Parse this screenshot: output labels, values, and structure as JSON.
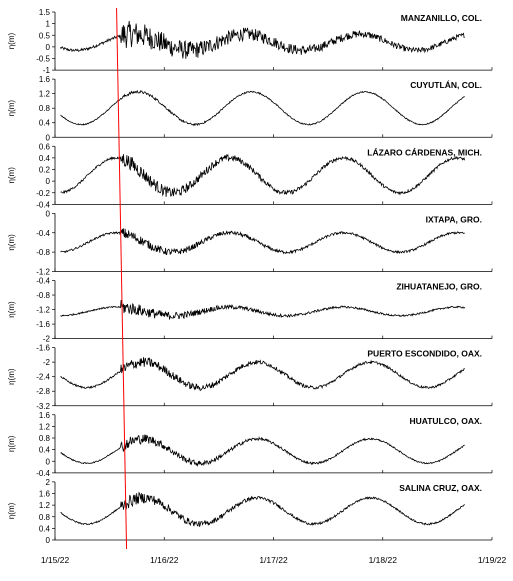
{
  "chart_data": {
    "type": "line",
    "ylabel": "η(m)",
    "x_ticks": [
      "1/15/22",
      "1/16/22",
      "1/17/22",
      "1/18/22",
      "1/19/22"
    ],
    "x_range_days": [
      0,
      4
    ],
    "event_marker_day": 0.6,
    "event_marker_color": "#ff0000",
    "line_color": "#000000",
    "panels": [
      {
        "station": "MANZANILLO, COL.",
        "ylim": [
          -1.0,
          1.5
        ],
        "yticks": [
          "1.5",
          "1",
          "0.5",
          "0",
          "-0.5",
          "-1"
        ],
        "tide": {
          "mean": 0.2,
          "amp": 0.35,
          "period": 1.04,
          "phase": 0.45
        },
        "noise": {
          "base": 0.06,
          "tsunami": 0.55,
          "decay": 0.8
        }
      },
      {
        "station": "CUYUTLÁN, COL.",
        "ylim": [
          0,
          1.6
        ],
        "yticks": [
          "1.6",
          "1.2",
          "0.8",
          "0.4",
          "0"
        ],
        "tide": {
          "mean": 0.8,
          "amp": 0.45,
          "period": 1.04,
          "phase": 0.5
        },
        "noise": {
          "base": 0.015,
          "tsunami": 0.03,
          "decay": 1.5
        }
      },
      {
        "station": "LÁZARO CÁRDENAS, MICH.",
        "ylim": [
          -0.4,
          0.6
        ],
        "yticks": [
          "0.6",
          "0.4",
          "0.2",
          "0",
          "-0.2",
          "-0.4"
        ],
        "tide": {
          "mean": 0.1,
          "amp": 0.3,
          "period": 1.04,
          "phase": 0.3
        },
        "noise": {
          "base": 0.02,
          "tsunami": 0.12,
          "decay": 1.2
        }
      },
      {
        "station": "IXTAPA, GRO.",
        "ylim": [
          -1.2,
          0
        ],
        "yticks": [
          "0",
          "-0.4",
          "-0.8",
          "-1.2"
        ],
        "tide": {
          "mean": -0.6,
          "amp": 0.2,
          "period": 1.04,
          "phase": 0.3
        },
        "noise": {
          "base": 0.02,
          "tsunami": 0.1,
          "decay": 1.5
        }
      },
      {
        "station": "ZIHUATANEJO, GRO.",
        "ylim": [
          -2.0,
          -0.4
        ],
        "yticks": [
          "-0.4",
          "-0.8",
          "-1.2",
          "-1.6",
          "-2"
        ],
        "tide": {
          "mean": -1.25,
          "amp": 0.12,
          "period": 1.04,
          "phase": 0.3
        },
        "noise": {
          "base": 0.02,
          "tsunami": 0.18,
          "decay": 1.5
        }
      },
      {
        "station": "PUERTO ESCONDIDO, OAX.",
        "ylim": [
          -3.2,
          -1.6
        ],
        "yticks": [
          "-1.6",
          "-2",
          "-2.4",
          "-2.8",
          "-3.2"
        ],
        "tide": {
          "mean": -2.35,
          "amp": 0.35,
          "period": 1.04,
          "phase": 0.55
        },
        "noise": {
          "base": 0.025,
          "tsunami": 0.15,
          "decay": 1.2
        }
      },
      {
        "station": "HUATULCO, OAX.",
        "ylim": [
          -0.4,
          1.6
        ],
        "yticks": [
          "1.6",
          "1.2",
          "0.8",
          "0.4",
          "0",
          "-0.4"
        ],
        "tide": {
          "mean": 0.35,
          "amp": 0.42,
          "period": 1.04,
          "phase": 0.55
        },
        "noise": {
          "base": 0.02,
          "tsunami": 0.2,
          "decay": 1.5
        }
      },
      {
        "station": "SALINA CRUZ, OAX.",
        "ylim": [
          0,
          2.0
        ],
        "yticks": [
          "2",
          "1.6",
          "1.2",
          "0.8",
          "0.4",
          "0"
        ],
        "tide": {
          "mean": 1.0,
          "amp": 0.45,
          "period": 1.04,
          "phase": 0.55
        },
        "noise": {
          "base": 0.025,
          "tsunami": 0.22,
          "decay": 1.5
        }
      }
    ]
  }
}
